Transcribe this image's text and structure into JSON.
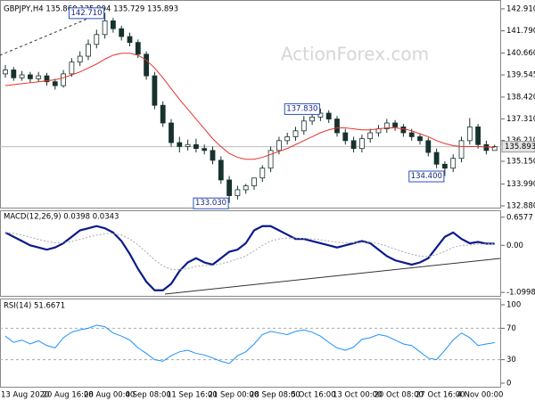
{
  "chart_data": [
    {
      "type": "candlestick",
      "title": "GBPJPY,H4  135.860 135.994 135.729 135.893",
      "watermark": "ActionForex.com",
      "color": "#17322e",
      "open": [
        139.6,
        139.8,
        139.4,
        139.55,
        139.35,
        139.5,
        139.2,
        139.0,
        139.6,
        140.2,
        140.5,
        141.1,
        141.6,
        142.3,
        141.9,
        141.5,
        141.2,
        140.6,
        139.5,
        138.0,
        137.1,
        136.1,
        135.9,
        136.0,
        135.8,
        135.7,
        135.2,
        134.2,
        133.4,
        133.7,
        133.9,
        134.3,
        134.8,
        135.7,
        136.2,
        136.4,
        136.7,
        137.2,
        137.4,
        137.6,
        137.3,
        136.6,
        136.2,
        135.8,
        136.3,
        136.6,
        136.8,
        137.1,
        136.9,
        136.6,
        136.4,
        136.2,
        135.6,
        135.0,
        134.8,
        135.3,
        136.2,
        136.9,
        136.0,
        135.7
      ],
      "high": [
        140.05,
        139.95,
        139.75,
        139.7,
        139.7,
        139.65,
        139.35,
        139.8,
        140.4,
        140.75,
        141.35,
        141.85,
        142.71,
        142.45,
        142.05,
        141.7,
        141.35,
        140.75,
        139.7,
        138.2,
        137.3,
        136.4,
        136.25,
        136.3,
        136.0,
        135.9,
        135.4,
        134.4,
        133.9,
        134.0,
        134.2,
        134.95,
        135.9,
        136.4,
        136.6,
        136.9,
        137.45,
        137.65,
        137.83,
        137.75,
        137.45,
        136.8,
        136.4,
        136.5,
        136.8,
        137.0,
        137.3,
        137.25,
        137.05,
        136.8,
        136.55,
        136.35,
        135.8,
        135.15,
        135.5,
        136.4,
        137.35,
        137.05,
        136.2,
        135.994
      ],
      "low": [
        139.4,
        139.25,
        139.25,
        139.15,
        139.2,
        139.0,
        138.8,
        138.9,
        139.45,
        140.0,
        140.3,
        140.9,
        141.4,
        141.7,
        141.3,
        141.0,
        140.4,
        139.3,
        137.8,
        136.9,
        135.9,
        135.6,
        135.7,
        135.6,
        135.5,
        135.0,
        134.0,
        133.03,
        133.2,
        133.5,
        133.7,
        134.1,
        134.6,
        135.5,
        136.0,
        136.2,
        136.5,
        137.0,
        137.2,
        137.1,
        136.4,
        136.0,
        135.6,
        135.6,
        136.1,
        136.4,
        136.6,
        136.7,
        136.4,
        136.2,
        136.0,
        135.4,
        134.8,
        134.4,
        134.6,
        135.1,
        136.0,
        135.8,
        135.5,
        135.729
      ],
      "close": [
        139.8,
        139.4,
        139.55,
        139.35,
        139.5,
        139.2,
        139.0,
        139.6,
        140.2,
        140.5,
        141.1,
        141.6,
        142.3,
        141.9,
        141.5,
        141.2,
        140.6,
        139.5,
        138.0,
        137.1,
        136.1,
        135.9,
        136.0,
        135.8,
        135.7,
        135.2,
        134.2,
        133.4,
        133.7,
        133.9,
        134.3,
        134.8,
        135.7,
        136.2,
        136.4,
        136.7,
        137.2,
        137.4,
        137.6,
        137.3,
        136.6,
        136.2,
        135.8,
        136.3,
        136.6,
        136.8,
        137.1,
        136.9,
        136.6,
        136.4,
        136.2,
        135.6,
        135.0,
        134.8,
        135.3,
        136.2,
        136.9,
        136.0,
        135.7,
        135.893
      ],
      "moving_average": {
        "color": "#e8322b",
        "values": [
          139.0,
          139.05,
          139.1,
          139.15,
          139.2,
          139.25,
          139.3,
          139.4,
          139.55,
          139.7,
          139.9,
          140.1,
          140.35,
          140.55,
          140.65,
          140.65,
          140.55,
          140.3,
          139.9,
          139.4,
          138.85,
          138.3,
          137.8,
          137.3,
          136.8,
          136.3,
          135.9,
          135.55,
          135.35,
          135.25,
          135.25,
          135.35,
          135.5,
          135.65,
          135.8,
          136.0,
          136.2,
          136.4,
          136.6,
          136.75,
          136.85,
          136.85,
          136.8,
          136.75,
          136.75,
          136.8,
          136.85,
          136.85,
          136.8,
          136.7,
          136.55,
          136.4,
          136.2,
          136.05,
          135.95,
          135.9,
          135.9,
          135.9,
          135.88,
          135.85
        ]
      },
      "annotations": [
        {
          "label": "142.710",
          "value": 142.71,
          "x": 12
        },
        {
          "label": "137.830",
          "value": 137.83,
          "x": 38
        },
        {
          "label": "133.030",
          "value": 133.03,
          "x": 27
        },
        {
          "label": "134.400",
          "value": 134.4,
          "x": 53
        }
      ],
      "ylim": [
        132.79,
        143.27
      ],
      "yticks": [
        {
          "value": 142.91,
          "label": "142.910"
        },
        {
          "value": 141.79,
          "label": "141.790"
        },
        {
          "value": 140.66,
          "label": "140.660"
        },
        {
          "value": 139.545,
          "label": "139.545"
        },
        {
          "value": 138.42,
          "label": "138.420"
        },
        {
          "value": 137.31,
          "label": "137.310"
        },
        {
          "value": 136.21,
          "label": "136.210"
        },
        {
          "value": 135.15,
          "label": "135.150"
        },
        {
          "value": 133.99,
          "label": "133.990"
        },
        {
          "value": 132.88,
          "label": "132.880"
        }
      ]
    },
    {
      "type": "line",
      "title": "MACD(12,26,9) 0.0398 0.0343",
      "series": [
        {
          "color": "#0b1a8c",
          "values": [
            0.3,
            0.2,
            0.1,
            0.0,
            -0.05,
            -0.1,
            -0.05,
            0.05,
            0.2,
            0.35,
            0.4,
            0.45,
            0.4,
            0.3,
            0.1,
            -0.2,
            -0.55,
            -0.85,
            -1.05,
            -1.05,
            -0.9,
            -0.6,
            -0.4,
            -0.3,
            -0.4,
            -0.45,
            -0.3,
            -0.15,
            -0.1,
            0.05,
            0.35,
            0.45,
            0.45,
            0.35,
            0.25,
            0.15,
            0.15,
            0.1,
            0.05,
            0.0,
            -0.05,
            0.0,
            0.05,
            0.1,
            0.05,
            -0.1,
            -0.25,
            -0.35,
            -0.4,
            -0.45,
            -0.4,
            -0.3,
            -0.05,
            0.2,
            0.3,
            0.15,
            0.05,
            0.08,
            0.04,
            0.0398
          ]
        },
        {
          "color": "#a8a8a8",
          "values": [
            0.3,
            0.28,
            0.24,
            0.19,
            0.14,
            0.09,
            0.06,
            0.06,
            0.09,
            0.14,
            0.19,
            0.24,
            0.27,
            0.28,
            0.24,
            0.15,
            0.01,
            -0.16,
            -0.34,
            -0.48,
            -0.56,
            -0.57,
            -0.54,
            -0.49,
            -0.47,
            -0.47,
            -0.43,
            -0.38,
            -0.32,
            -0.25,
            -0.13,
            0.0,
            0.1,
            0.15,
            0.17,
            0.17,
            0.16,
            0.15,
            0.13,
            0.1,
            0.07,
            0.06,
            0.06,
            0.07,
            0.07,
            0.04,
            -0.02,
            -0.09,
            -0.15,
            -0.21,
            -0.25,
            -0.26,
            -0.22,
            -0.14,
            -0.05,
            0.0,
            0.01,
            0.03,
            0.03,
            0.0343
          ]
        }
      ],
      "ylim": [
        -1.139,
        0.736
      ],
      "yticks": [
        0.6577,
        {
          "value": 0,
          "label": "0.00"
        },
        -1.0998
      ]
    },
    {
      "type": "line",
      "title": "RSI(14) 51.6671",
      "categories": [
        "13 Aug 2020",
        null,
        null,
        null,
        null,
        "20 Aug 16:00",
        null,
        null,
        null,
        null,
        "28 Aug 00:00",
        null,
        null,
        null,
        null,
        "4 Sep 08:00",
        null,
        null,
        null,
        null,
        "11 Sep 16:00",
        null,
        null,
        null,
        null,
        "21 Sep 00:00",
        null,
        null,
        null,
        null,
        "28 Sep 08:00",
        null,
        null,
        null,
        null,
        "5 Oct 16:00",
        null,
        null,
        null,
        null,
        "13 Oct 00:00",
        null,
        null,
        null,
        null,
        "20 Oct 08:00",
        null,
        null,
        null,
        null,
        "27 Oct 16:00",
        null,
        null,
        null,
        null,
        "4 Nov 00:00",
        null,
        null,
        null,
        null
      ],
      "series": [
        {
          "color": "#1e90ff",
          "values": [
            60,
            52,
            55,
            50,
            54,
            48,
            45,
            58,
            65,
            68,
            70,
            74,
            72,
            64,
            60,
            55,
            45,
            38,
            30,
            28,
            35,
            40,
            42,
            38,
            36,
            32,
            28,
            25,
            35,
            40,
            50,
            62,
            66,
            64,
            62,
            66,
            68,
            65,
            60,
            52,
            45,
            42,
            46,
            56,
            58,
            62,
            60,
            55,
            50,
            48,
            40,
            32,
            30,
            42,
            55,
            64,
            58,
            48,
            50,
            51.6671
          ]
        }
      ],
      "ylim": [
        0,
        100
      ],
      "yticks": [
        100,
        70,
        30,
        0
      ]
    }
  ]
}
